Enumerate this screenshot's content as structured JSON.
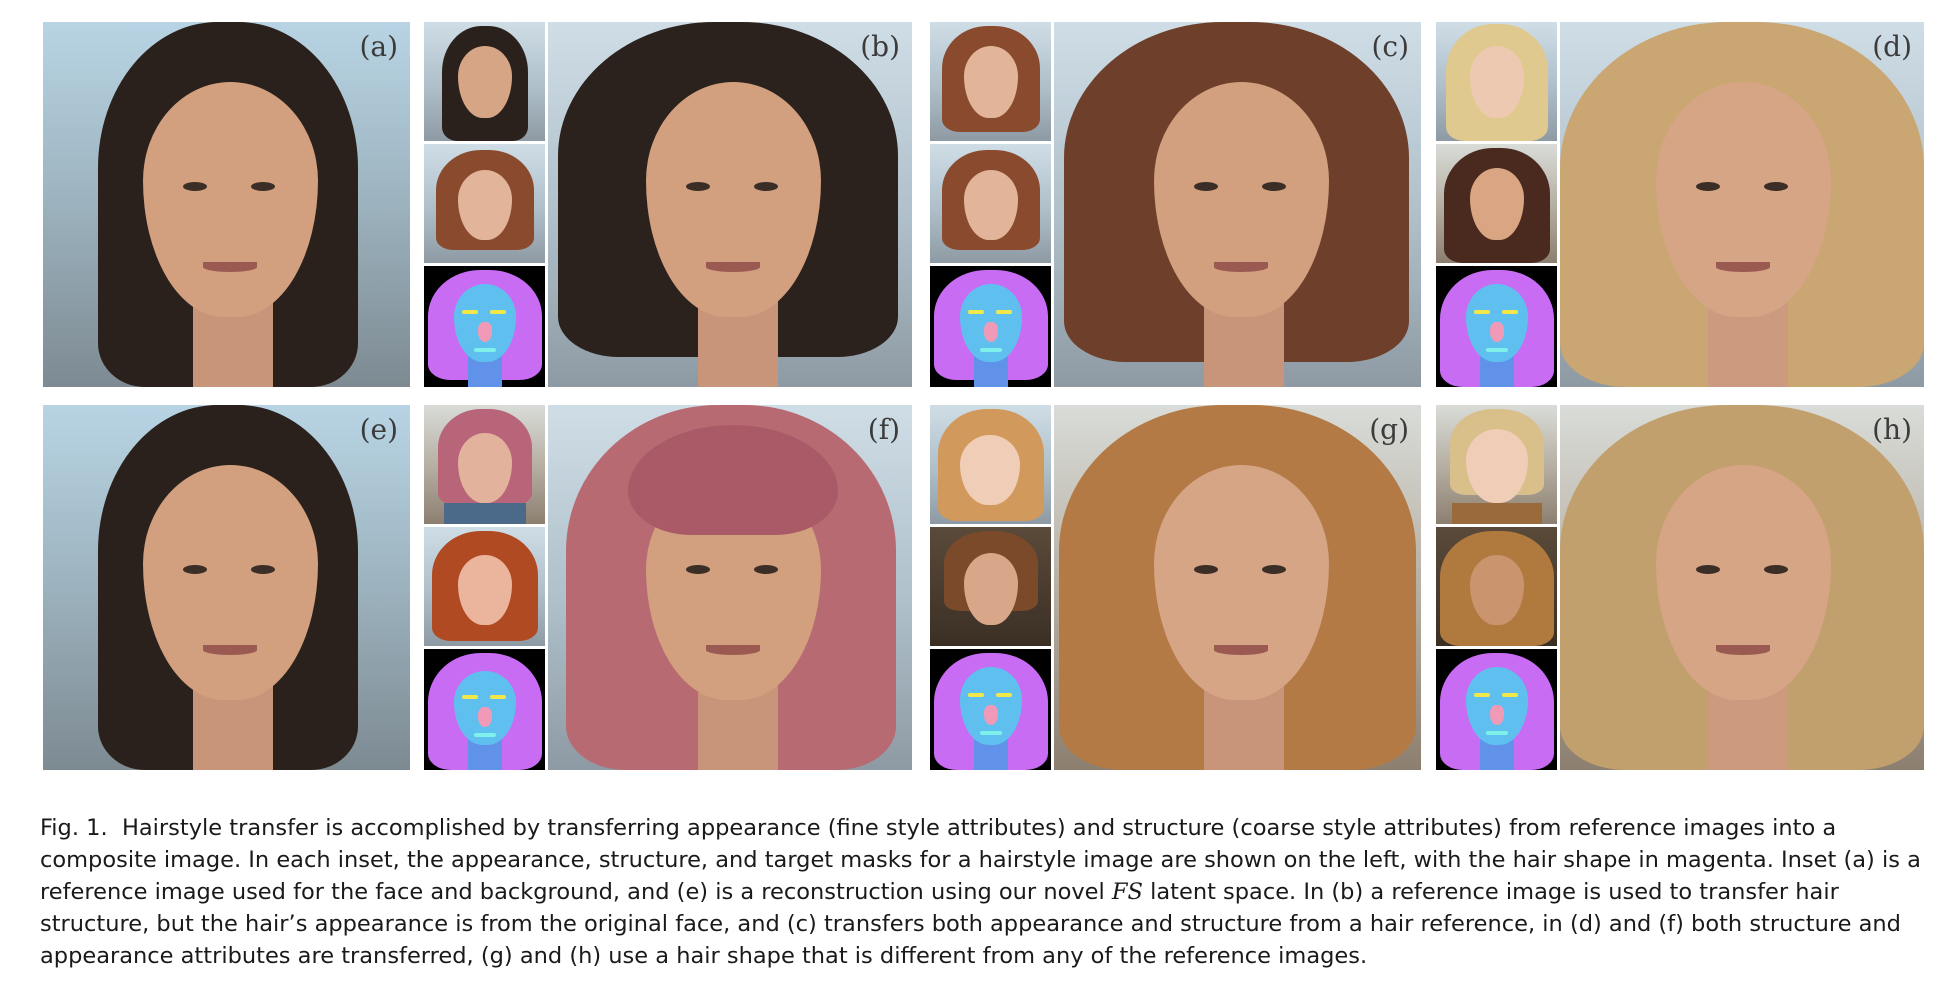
{
  "figure": {
    "panels": [
      {
        "label": "(a)"
      },
      {
        "label": "(b)"
      },
      {
        "label": "(c)"
      },
      {
        "label": "(d)"
      },
      {
        "label": "(e)"
      },
      {
        "label": "(f)"
      },
      {
        "label": "(g)"
      },
      {
        "label": "(h)"
      }
    ],
    "caption": {
      "prefix": "Fig. 1.",
      "part1": "Hairstyle transfer is accomplished by transferring appearance (fine style attributes) and structure (coarse style attributes) from reference images into a composite image. In each inset, the appearance, structure, and target masks for a hairstyle image are shown on the left, with the hair shape in magenta. Inset (a) is a reference image used for the face and background, and (e) is a reconstruction using our novel",
      "math": "FS",
      "part2": "latent space. In (b) a reference image is used to transfer hair structure, but the hair’s appearance is from the original face, and (c) transfers both appearance and structure from a hair reference, in (d) and (f) both structure and appearance attributes are transferred, (g) and (h) use a hair shape that is different from any of the reference images."
    }
  },
  "colors": {
    "mask_hair": "#c86cf4",
    "mask_face": "#5fc0f0",
    "mask_neck": "#5f92e8",
    "mask_brows": "#f2e84a",
    "mask_nose": "#f19ab8",
    "mask_mouth": "#7ff0ea"
  }
}
